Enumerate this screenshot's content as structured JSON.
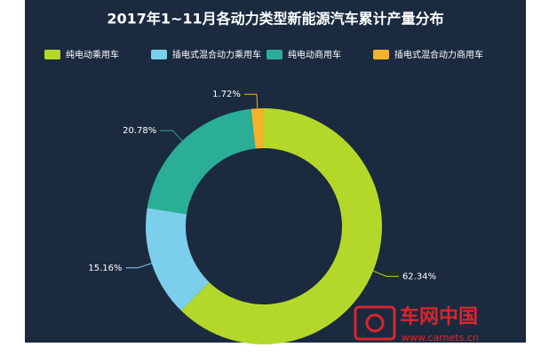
{
  "chart_data": {
    "type": "pie",
    "title": "2017年1~11月各动力类型新能源汽车累计产量分布",
    "categories": [
      "纯电动乘用车",
      "插电式混合动力乘用车",
      "纯电动商用车",
      "插电式混合动力商用车"
    ],
    "values": [
      62.34,
      15.16,
      20.78,
      1.72
    ],
    "value_labels": [
      "62.34%",
      "15.16%",
      "20.78%",
      "1.72%"
    ],
    "colors": [
      "#b3d82a",
      "#7ccfea",
      "#2aae98",
      "#f2b22a"
    ],
    "legend": "top"
  },
  "watermark": {
    "brand": "车网中国",
    "url": "www.carnets.cn"
  }
}
